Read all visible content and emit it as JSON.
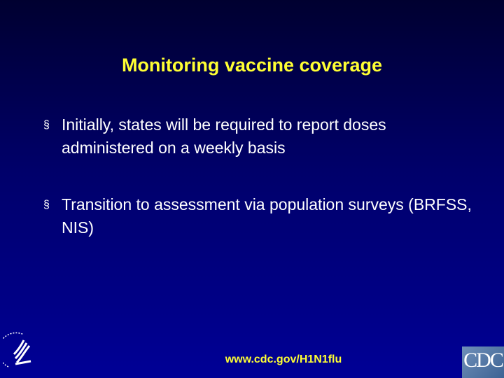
{
  "slide": {
    "title": "Monitoring vaccine coverage",
    "bullets": [
      "Initially, states will be required to report doses administered on a weekly basis",
      "Transition to assessment via population surveys (BRFSS, NIS)"
    ],
    "bullet_marker": "§",
    "footer_url": "www.cdc.gov/H1N1flu",
    "logo_right": "CDC"
  },
  "colors": {
    "title": "#ffff33",
    "text": "#ffffff",
    "background_top": "#000030",
    "background_bottom": "#000096"
  }
}
